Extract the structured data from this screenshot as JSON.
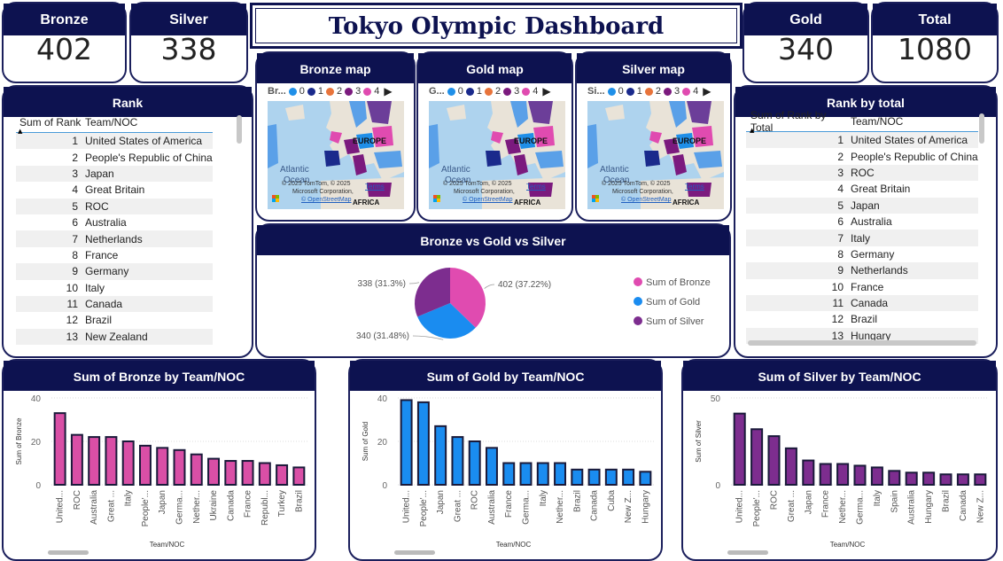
{
  "kpis": {
    "bronze": {
      "label": "Bronze",
      "value": "402"
    },
    "silver": {
      "label": "Silver",
      "value": "338"
    },
    "gold": {
      "label": "Gold",
      "value": "340"
    },
    "total": {
      "label": "Total",
      "value": "1080"
    }
  },
  "title": "Tokyo Olympic Dashboard",
  "rank_table": {
    "title": "Rank",
    "col1": "Sum of Rank",
    "col2": "Team/NOC",
    "rows": [
      [
        "1",
        "United States of America"
      ],
      [
        "2",
        "People's Republic of China"
      ],
      [
        "3",
        "Japan"
      ],
      [
        "4",
        "Great Britain"
      ],
      [
        "5",
        "ROC"
      ],
      [
        "6",
        "Australia"
      ],
      [
        "7",
        "Netherlands"
      ],
      [
        "8",
        "France"
      ],
      [
        "9",
        "Germany"
      ],
      [
        "10",
        "Italy"
      ],
      [
        "11",
        "Canada"
      ],
      [
        "12",
        "Brazil"
      ],
      [
        "13",
        "New Zealand"
      ]
    ]
  },
  "rank_total_table": {
    "title": "Rank by total",
    "col1": "Sum of Rank by Total",
    "col2": "Team/NOC",
    "rows": [
      [
        "1",
        "United States of America"
      ],
      [
        "2",
        "People's Republic of China"
      ],
      [
        "3",
        "ROC"
      ],
      [
        "4",
        "Great Britain"
      ],
      [
        "5",
        "Japan"
      ],
      [
        "6",
        "Australia"
      ],
      [
        "7",
        "Italy"
      ],
      [
        "8",
        "Germany"
      ],
      [
        "9",
        "Netherlands"
      ],
      [
        "10",
        "France"
      ],
      [
        "11",
        "Canada"
      ],
      [
        "12",
        "Brazil"
      ],
      [
        "13",
        "Hungary"
      ]
    ]
  },
  "maps": [
    {
      "title": "Bronze map",
      "legend_prefix": "Br...",
      "europe": "EUROPE",
      "atlantic": "Atlantic",
      "ocean": "Ocean",
      "africa": "AFRICA",
      "attr1": "© 2025 TomTom, © 2025",
      "attr2": "Microsoft Corporation,",
      "attr3": "© OpenStreetMap",
      "terms": "Terms"
    },
    {
      "title": "Gold map",
      "legend_prefix": "G...",
      "europe": "EUROPE",
      "atlantic": "Atlantic",
      "ocean": "Ocean",
      "africa": "AFRICA",
      "attr1": "© 2025 TomTom, © 2025",
      "attr2": "Microsoft Corporation,",
      "attr3": "© OpenStreetMap",
      "terms": "Terms"
    },
    {
      "title": "Silver map",
      "legend_prefix": "Si...",
      "europe": "EUROPE",
      "atlantic": "Atlantic",
      "ocean": "Ocean",
      "africa": "AFRICA",
      "attr1": "© 2025 TomTom, © 2025",
      "attr2": "Microsoft Corporation,",
      "attr3": "© OpenStreetMap",
      "terms": "Terms"
    }
  ],
  "map_legend": {
    "items": [
      "0",
      "1",
      "2",
      "3",
      "4"
    ],
    "colors": [
      "#1f8fe8",
      "#1a2a8c",
      "#e8743b",
      "#7b1a7e",
      "#e04bb0"
    ]
  },
  "colors": {
    "navy": "#0d1250",
    "bronze_bar": "#d94fa6",
    "gold_bar": "#1a8cf0",
    "silver_bar": "#7d2d8f",
    "bar_outline": "#1a1a3a"
  },
  "pie": {
    "title": "Bronze vs Gold vs Silver",
    "slices": [
      {
        "name": "Sum of Bronze",
        "value": 402,
        "label": "402 (37.22%)",
        "color": "#e04bb0"
      },
      {
        "name": "Sum of Gold",
        "value": 340,
        "label": "340 (31.48%)",
        "color": "#1a8cf0"
      },
      {
        "name": "Sum of Silver",
        "value": 338,
        "label": "338 (31.3%)",
        "color": "#7d2d8f"
      }
    ]
  },
  "chart_data": [
    {
      "type": "bar",
      "title": "Sum of Bronze by Team/NOC",
      "xlabel": "Team/NOC",
      "ylabel": "Sum of Bronze",
      "ylim": [
        0,
        40
      ],
      "yticks": [
        "0",
        "20",
        "40"
      ],
      "categories": [
        "United...",
        "ROC",
        "Australia",
        "Great ...",
        "Italy",
        "People'...",
        "Japan",
        "Germa...",
        "Nether...",
        "Ukraine",
        "Canada",
        "France",
        "Republ...",
        "Turkey",
        "Brazil"
      ],
      "values": [
        33,
        23,
        22,
        22,
        20,
        18,
        17,
        16,
        14,
        12,
        11,
        11,
        10,
        9,
        8
      ]
    },
    {
      "type": "bar",
      "title": "Sum of Gold by Team/NOC",
      "xlabel": "Team/NOC",
      "ylabel": "Sum of Gold",
      "ylim": [
        0,
        40
      ],
      "yticks": [
        "0",
        "20",
        "40"
      ],
      "categories": [
        "United...",
        "People'...",
        "Japan",
        "Great ...",
        "ROC",
        "Australia",
        "France",
        "Germa...",
        "Italy",
        "Nether...",
        "Brazil",
        "Canada",
        "Cuba",
        "New Z...",
        "Hungary"
      ],
      "values": [
        39,
        38,
        27,
        22,
        20,
        17,
        10,
        10,
        10,
        10,
        7,
        7,
        7,
        7,
        6
      ]
    },
    {
      "type": "bar",
      "title": "Sum of Silver by Team/NOC",
      "xlabel": "Team/NOC",
      "ylabel": "Sum of Silver",
      "ylim": [
        0,
        50
      ],
      "yticks": [
        "0",
        "50"
      ],
      "categories": [
        "United...",
        "People'...",
        "ROC",
        "Great ...",
        "Japan",
        "France",
        "Nether...",
        "Germa...",
        "Italy",
        "Spain",
        "Australia",
        "Hungary",
        "Brazil",
        "Canada",
        "New Z..."
      ],
      "values": [
        41,
        32,
        28,
        21,
        14,
        12,
        12,
        11,
        10,
        8,
        7,
        7,
        6,
        6,
        6
      ]
    }
  ]
}
